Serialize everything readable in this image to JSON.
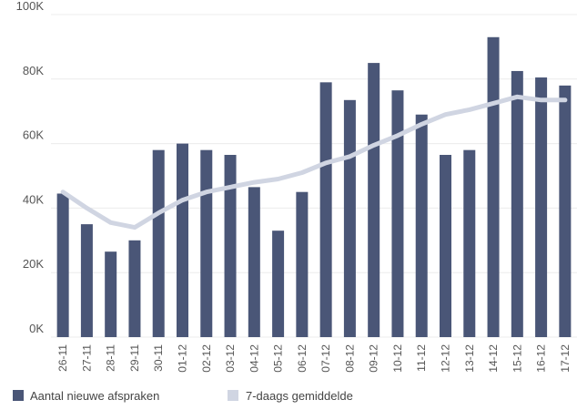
{
  "chart_data": {
    "type": "bar",
    "title": "",
    "xlabel": "",
    "ylabel": "",
    "ylim": [
      0,
      100000
    ],
    "yticks": [
      0,
      20000,
      40000,
      60000,
      80000,
      100000
    ],
    "ytick_labels": [
      "0K",
      "20K",
      "40K",
      "60K",
      "80K",
      "100K"
    ],
    "grid": true,
    "legend_position": "bottom-left",
    "categories": [
      "26-11",
      "27-11",
      "28-11",
      "29-11",
      "30-11",
      "01-12",
      "02-12",
      "03-12",
      "04-12",
      "05-12",
      "06-12",
      "07-12",
      "08-12",
      "09-12",
      "10-12",
      "11-12",
      "12-12",
      "13-12",
      "14-12",
      "15-12",
      "16-12",
      "17-12"
    ],
    "series": [
      {
        "name": "Aantal nieuwe afspraken",
        "type": "bar",
        "color": "#4a5677",
        "values": [
          44500,
          35000,
          26500,
          30000,
          58000,
          60000,
          58000,
          56500,
          46500,
          33000,
          45000,
          79000,
          73500,
          85000,
          76500,
          69000,
          56500,
          58000,
          93000,
          82500,
          80500,
          78000
        ]
      },
      {
        "name": "7-daags gemiddelde",
        "type": "line",
        "color": "#d0d5e2",
        "values": [
          45000,
          40000,
          35500,
          34000,
          38500,
          42500,
          45000,
          46500,
          48000,
          49000,
          51000,
          54000,
          56000,
          59500,
          62500,
          66000,
          69000,
          70500,
          72500,
          74500,
          73500,
          73500
        ]
      }
    ]
  }
}
